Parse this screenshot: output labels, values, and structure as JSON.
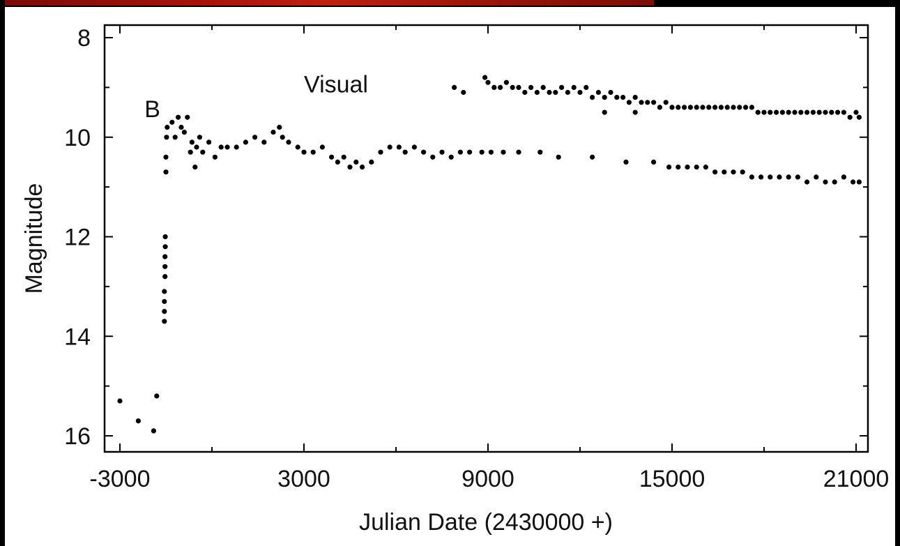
{
  "chart_data": {
    "type": "scatter",
    "title": "",
    "xlabel": "Julian Date (2430000 +)",
    "ylabel": "Magnitude",
    "xlim": [
      -3000,
      21500
    ],
    "ylim": [
      16,
      8
    ],
    "y_inverted": true,
    "x_ticks": [
      -3000,
      3000,
      9000,
      15000,
      21000
    ],
    "x_tick_labels": [
      "-3000",
      "3000",
      "9000",
      "15000",
      "21000"
    ],
    "y_ticks": [
      8,
      10,
      12,
      14,
      16
    ],
    "y_tick_labels": [
      "8",
      "10",
      "12",
      "14",
      "16"
    ],
    "grid": false,
    "marker_color": "#000000",
    "annotations": [
      {
        "text": "B",
        "x": -2200,
        "y": 9.6
      },
      {
        "text": "Visual",
        "x": 3000,
        "y": 9.1
      }
    ],
    "series": [
      {
        "points": [
          [
            -3000,
            15.3
          ],
          [
            -2400,
            15.7
          ],
          [
            -1900,
            15.9
          ],
          [
            -1800,
            15.2
          ],
          [
            -1550,
            13.7
          ],
          [
            -1550,
            13.5
          ],
          [
            -1550,
            13.3
          ],
          [
            -1550,
            13.1
          ],
          [
            -1530,
            12.8
          ],
          [
            -1530,
            12.6
          ],
          [
            -1530,
            12.4
          ],
          [
            -1520,
            12.2
          ],
          [
            -1520,
            12.0
          ],
          [
            -1500,
            10.7
          ],
          [
            -1500,
            10.4
          ],
          [
            -1480,
            10.0
          ],
          [
            -1460,
            9.8
          ],
          [
            -1300,
            9.7
          ],
          [
            -1200,
            10.0
          ],
          [
            -1100,
            9.6
          ],
          [
            -1000,
            9.8
          ],
          [
            -900,
            9.9
          ],
          [
            -800,
            9.6
          ],
          [
            -700,
            10.3
          ],
          [
            -650,
            10.1
          ],
          [
            -550,
            10.6
          ],
          [
            -500,
            10.2
          ],
          [
            -400,
            10.0
          ],
          [
            -300,
            10.3
          ],
          [
            -100,
            10.1
          ],
          [
            100,
            10.4
          ],
          [
            300,
            10.2
          ],
          [
            500,
            10.2
          ],
          [
            800,
            10.2
          ],
          [
            1100,
            10.1
          ],
          [
            1400,
            10.0
          ],
          [
            1700,
            10.1
          ],
          [
            2000,
            9.9
          ],
          [
            2200,
            9.8
          ],
          [
            2300,
            10.0
          ],
          [
            2500,
            10.1
          ],
          [
            2800,
            10.2
          ],
          [
            3000,
            10.3
          ],
          [
            3300,
            10.3
          ],
          [
            3600,
            10.2
          ],
          [
            3900,
            10.4
          ],
          [
            4100,
            10.5
          ],
          [
            4300,
            10.4
          ],
          [
            4500,
            10.6
          ],
          [
            4700,
            10.5
          ],
          [
            4900,
            10.6
          ],
          [
            5200,
            10.5
          ],
          [
            5500,
            10.3
          ],
          [
            5800,
            10.2
          ],
          [
            6100,
            10.2
          ],
          [
            6300,
            10.3
          ],
          [
            6600,
            10.2
          ],
          [
            6900,
            10.3
          ],
          [
            7200,
            10.4
          ],
          [
            7500,
            10.3
          ],
          [
            7800,
            10.4
          ],
          [
            8100,
            10.3
          ],
          [
            8400,
            10.3
          ],
          [
            8800,
            10.3
          ],
          [
            9100,
            10.3
          ],
          [
            9500,
            10.3
          ],
          [
            10000,
            10.3
          ],
          [
            10700,
            10.3
          ],
          [
            11300,
            10.4
          ],
          [
            12400,
            10.4
          ],
          [
            13500,
            10.5
          ],
          [
            14400,
            10.5
          ],
          [
            14900,
            10.6
          ],
          [
            15200,
            10.6
          ],
          [
            15500,
            10.6
          ],
          [
            15800,
            10.6
          ],
          [
            16100,
            10.6
          ],
          [
            16400,
            10.7
          ],
          [
            16700,
            10.7
          ],
          [
            17000,
            10.7
          ],
          [
            17300,
            10.7
          ],
          [
            17600,
            10.8
          ],
          [
            17900,
            10.8
          ],
          [
            18200,
            10.8
          ],
          [
            18500,
            10.8
          ],
          [
            18800,
            10.8
          ],
          [
            19100,
            10.8
          ],
          [
            19400,
            10.9
          ],
          [
            19700,
            10.8
          ],
          [
            20000,
            10.9
          ],
          [
            20300,
            10.9
          ],
          [
            20600,
            10.8
          ],
          [
            20900,
            10.9
          ],
          [
            21100,
            10.9
          ]
        ]
      },
      {
        "points": [
          [
            7900,
            9.0
          ],
          [
            8200,
            9.1
          ],
          [
            8900,
            8.8
          ],
          [
            9000,
            8.9
          ],
          [
            9200,
            9.0
          ],
          [
            9400,
            9.0
          ],
          [
            9600,
            8.9
          ],
          [
            9800,
            9.0
          ],
          [
            10000,
            9.0
          ],
          [
            10200,
            9.1
          ],
          [
            10400,
            9.0
          ],
          [
            10600,
            9.1
          ],
          [
            10800,
            9.0
          ],
          [
            11000,
            9.1
          ],
          [
            11200,
            9.1
          ],
          [
            11400,
            9.0
          ],
          [
            11600,
            9.1
          ],
          [
            11800,
            9.0
          ],
          [
            12000,
            9.1
          ],
          [
            12200,
            9.0
          ],
          [
            12400,
            9.2
          ],
          [
            12600,
            9.1
          ],
          [
            12800,
            9.2
          ],
          [
            13000,
            9.1
          ],
          [
            13200,
            9.2
          ],
          [
            13400,
            9.2
          ],
          [
            13600,
            9.3
          ],
          [
            13800,
            9.2
          ],
          [
            14000,
            9.3
          ],
          [
            14200,
            9.3
          ],
          [
            14400,
            9.3
          ],
          [
            14600,
            9.4
          ],
          [
            14800,
            9.3
          ],
          [
            15000,
            9.4
          ],
          [
            15200,
            9.4
          ],
          [
            15400,
            9.4
          ],
          [
            15600,
            9.4
          ],
          [
            15800,
            9.4
          ],
          [
            16000,
            9.4
          ],
          [
            16200,
            9.4
          ],
          [
            16400,
            9.4
          ],
          [
            16600,
            9.4
          ],
          [
            16800,
            9.4
          ],
          [
            17000,
            9.4
          ],
          [
            17200,
            9.4
          ],
          [
            17400,
            9.4
          ],
          [
            17600,
            9.4
          ],
          [
            17800,
            9.5
          ],
          [
            18000,
            9.5
          ],
          [
            18200,
            9.5
          ],
          [
            18400,
            9.5
          ],
          [
            18600,
            9.5
          ],
          [
            18800,
            9.5
          ],
          [
            19000,
            9.5
          ],
          [
            19200,
            9.5
          ],
          [
            19400,
            9.5
          ],
          [
            19600,
            9.5
          ],
          [
            19800,
            9.5
          ],
          [
            20000,
            9.5
          ],
          [
            20200,
            9.5
          ],
          [
            20400,
            9.5
          ],
          [
            20600,
            9.5
          ],
          [
            20800,
            9.6
          ],
          [
            21000,
            9.5
          ],
          [
            21100,
            9.6
          ],
          [
            12800,
            9.5
          ],
          [
            13800,
            9.5
          ]
        ]
      }
    ]
  }
}
